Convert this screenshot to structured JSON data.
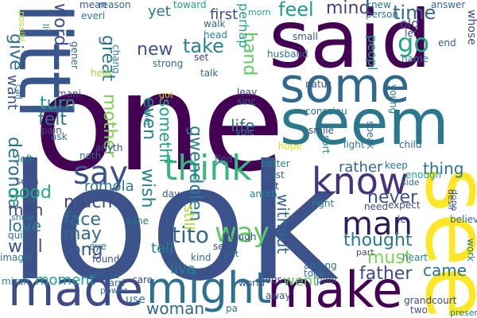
{
  "cloud": {
    "words": [
      {
        "text": "one",
        "color": "#440154"
      },
      {
        "text": "look",
        "color": "#3b528b"
      },
      {
        "text": "said",
        "color": "#440154"
      },
      {
        "text": "littl",
        "color": "#39568c"
      },
      {
        "text": "seem",
        "color": "#2a788e"
      },
      {
        "text": "some",
        "color": "#31688e"
      },
      {
        "text": "see",
        "color": "#fde725"
      },
      {
        "text": "made",
        "color": "#3e4a89"
      },
      {
        "text": "might",
        "color": "#2c728e"
      },
      {
        "text": "make",
        "color": "#440154"
      },
      {
        "text": "think",
        "color": "#35b779"
      },
      {
        "text": "know",
        "color": "#46337e"
      },
      {
        "text": "say",
        "color": "#3b528b"
      },
      {
        "text": "man",
        "color": "#2c1c5b"
      },
      {
        "text": "way",
        "color": "#5ec962"
      },
      {
        "text": "tito",
        "color": "#31688e"
      },
      {
        "text": "feel",
        "color": "#1f9e89"
      },
      {
        "text": "mind",
        "color": "#404387"
      },
      {
        "text": "time",
        "color": "#31688e"
      },
      {
        "text": "go",
        "color": "#22a884"
      },
      {
        "text": "yet",
        "color": "#2a788e"
      },
      {
        "text": "first",
        "color": "#3e4a89"
      },
      {
        "text": "take",
        "color": "#26828e"
      },
      {
        "text": "new",
        "color": "#3b528b"
      },
      {
        "text": "hand",
        "color": "#5ec962"
      },
      {
        "text": "perhap",
        "color": "#20a486"
      },
      {
        "text": "word",
        "color": "#3e4a89"
      },
      {
        "text": "great",
        "color": "#2a788e"
      },
      {
        "text": "want",
        "color": "#3b528b"
      },
      {
        "text": "give",
        "color": "#2c728e"
      },
      {
        "text": "even",
        "color": "#26828e"
      },
      {
        "text": "mother",
        "color": "#7ad151"
      },
      {
        "text": "somethi",
        "color": "#1fa187"
      },
      {
        "text": "turn",
        "color": "#1f9e89"
      },
      {
        "text": "felt",
        "color": "#2c728e"
      },
      {
        "text": "gwendolen",
        "color": "#2a788e"
      },
      {
        "text": "life",
        "color": "#31688e"
      },
      {
        "text": "still",
        "color": "#addc30"
      },
      {
        "text": "deronda",
        "color": "#2c728e"
      },
      {
        "text": "good",
        "color": "#22a884"
      },
      {
        "text": "men",
        "color": "#3e4a89"
      },
      {
        "text": "love",
        "color": "#2a788e"
      },
      {
        "text": "well",
        "color": "#3b528b"
      },
      {
        "text": "much",
        "color": "#3e4a89"
      },
      {
        "text": "wish",
        "color": "#26828e"
      },
      {
        "text": "face",
        "color": "#2c728e"
      },
      {
        "text": "may",
        "color": "#31688e"
      },
      {
        "text": "long",
        "color": "#3b528b"
      },
      {
        "text": "romola",
        "color": "#2a788e"
      },
      {
        "text": "tell",
        "color": "#26828e"
      },
      {
        "text": "without",
        "color": "#31688e"
      },
      {
        "text": "thought",
        "color": "#2a788e"
      },
      {
        "text": "never",
        "color": "#3b528b"
      },
      {
        "text": "thing",
        "color": "#2c728e"
      },
      {
        "text": "rather",
        "color": "#31688e"
      },
      {
        "text": "must",
        "color": "#7ad151"
      },
      {
        "text": "father",
        "color": "#3e4a89"
      },
      {
        "text": "came",
        "color": "#2c728e"
      },
      {
        "text": "live",
        "color": "#26828e"
      },
      {
        "text": "moment",
        "color": "#1f9e89"
      },
      {
        "text": "went",
        "color": "#5ec962"
      },
      {
        "text": "woman",
        "color": "#31688e"
      },
      {
        "text": "use",
        "color": "#2a788e"
      },
      {
        "text": "peopl",
        "color": "#20a486"
      },
      {
        "text": "old",
        "color": "#3e4a89"
      },
      {
        "text": "mean",
        "color": "#3b528b"
      },
      {
        "text": "everi",
        "color": "#2a788e"
      },
      {
        "text": "reason",
        "color": "#31688e"
      },
      {
        "text": "toward",
        "color": "#1f9e89"
      },
      {
        "text": "walk",
        "color": "#31688e"
      },
      {
        "text": "head",
        "color": "#26828e"
      },
      {
        "text": "morn",
        "color": "#20a486"
      },
      {
        "text": "knew",
        "color": "#2a788e"
      },
      {
        "text": "person",
        "color": "#2c728e"
      },
      {
        "text": "answer",
        "color": "#31688e"
      },
      {
        "text": "let",
        "color": "#3e4a89"
      },
      {
        "text": "end",
        "color": "#3b528b"
      },
      {
        "text": "name",
        "color": "#2a788e"
      },
      {
        "text": "whose",
        "color": "#3e4a89"
      },
      {
        "text": "lif",
        "color": "#26828e"
      },
      {
        "text": "possibl",
        "color": "#b5de2b"
      },
      {
        "text": "gener",
        "color": "#31688e"
      },
      {
        "text": "chang",
        "color": "#26828e"
      },
      {
        "text": "strong",
        "color": "#31688e"
      },
      {
        "text": "set",
        "color": "#3e4a89"
      },
      {
        "text": "small",
        "color": "#3b528b"
      },
      {
        "text": "husband",
        "color": "#2c728e"
      },
      {
        "text": "talk",
        "color": "#31688e"
      },
      {
        "text": "leav",
        "color": "#3e4a89"
      },
      {
        "text": "sinc",
        "color": "#31688e"
      },
      {
        "text": "voic",
        "color": "#2a788e"
      },
      {
        "text": "consciou",
        "color": "#2c728e"
      },
      {
        "text": "natur",
        "color": "#3b528b"
      },
      {
        "text": "speak",
        "color": "#31688e"
      },
      {
        "text": "young",
        "color": "#2a788e"
      },
      {
        "text": "smile",
        "color": "#3e4a89"
      },
      {
        "text": "sort",
        "color": "#26828e"
      },
      {
        "text": "light",
        "color": "#2c728e"
      },
      {
        "text": "child",
        "color": "#31688e"
      },
      {
        "text": "hope",
        "color": "#d8e219"
      },
      {
        "text": "help",
        "color": "#a0da39"
      },
      {
        "text": "mani",
        "color": "#3b528b"
      },
      {
        "text": "call",
        "color": "#2a788e"
      },
      {
        "text": "pain",
        "color": "#3e4a89"
      },
      {
        "text": "ask",
        "color": "#31688e"
      },
      {
        "text": "got",
        "color": "#c2df23"
      },
      {
        "text": "esther",
        "color": "#2a788e"
      },
      {
        "text": "left",
        "color": "#2a788e"
      },
      {
        "text": "noth",
        "color": "#31688e"
      },
      {
        "text": "anyth",
        "color": "#3e4a89"
      },
      {
        "text": "find",
        "color": "#3b528b"
      },
      {
        "text": "better",
        "color": "#26828e"
      },
      {
        "text": "last",
        "color": "#31688e"
      },
      {
        "text": "keep",
        "color": "#2a788e"
      },
      {
        "text": "enough",
        "color": "#20a486"
      },
      {
        "text": "side",
        "color": "#31688e"
      },
      {
        "text": "done",
        "color": "#2c728e"
      },
      {
        "text": "desir",
        "color": "#3e4a89"
      },
      {
        "text": "seen",
        "color": "#3b528b"
      },
      {
        "text": "day",
        "color": "#3b528b"
      },
      {
        "text": "anoth",
        "color": "#26828e"
      },
      {
        "text": "fact",
        "color": "#3e4a89"
      },
      {
        "text": "need",
        "color": "#3e4a89"
      },
      {
        "text": "expect",
        "color": "#3e4a89"
      },
      {
        "text": "right",
        "color": "#26828e"
      },
      {
        "text": "le",
        "color": "#3b528b"
      },
      {
        "text": "believ",
        "color": "#31688e"
      },
      {
        "text": "show",
        "color": "#2a788e"
      },
      {
        "text": "tone",
        "color": "#2a788e"
      },
      {
        "text": "though",
        "color": "#3e4a89"
      },
      {
        "text": "quit",
        "color": "#31688e"
      },
      {
        "text": "eye",
        "color": "#2a788e"
      },
      {
        "text": "sen",
        "color": "#3b528b"
      },
      {
        "text": "put",
        "color": "#31688e"
      },
      {
        "text": "part",
        "color": "#3e4a89"
      },
      {
        "text": "work",
        "color": "#2a788e"
      },
      {
        "text": "imagin",
        "color": "#2a788e"
      },
      {
        "text": "found",
        "color": "#3e4a89"
      },
      {
        "text": "kind",
        "color": "#2c728e"
      },
      {
        "text": "among",
        "color": "#31688e"
      },
      {
        "text": "took",
        "color": "#2a788e"
      },
      {
        "text": "heart",
        "color": "#26828e"
      },
      {
        "text": "mirah",
        "color": "#2a788e"
      },
      {
        "text": "place",
        "color": "#31688e"
      },
      {
        "text": "care",
        "color": "#3e4a89"
      },
      {
        "text": "carri",
        "color": "#2c728e"
      },
      {
        "text": "world",
        "color": "#3b528b"
      },
      {
        "text": "hous",
        "color": "#3e4a89"
      },
      {
        "text": "poor",
        "color": "#31688e"
      },
      {
        "text": "power",
        "color": "#2a788e"
      },
      {
        "text": "away",
        "color": "#3b528b"
      },
      {
        "text": "pa",
        "color": "#2a788e"
      },
      {
        "text": "grandcourt",
        "color": "#3e4a89"
      },
      {
        "text": "two",
        "color": "#3b528b"
      },
      {
        "text": "present",
        "color": "#2a788e"
      },
      {
        "text": "saw",
        "color": "#31688e"
      }
    ]
  }
}
